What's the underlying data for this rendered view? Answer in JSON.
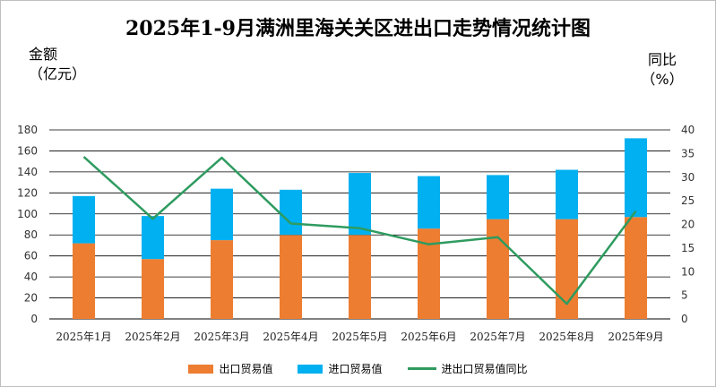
{
  "chart_data": {
    "type": "bar",
    "title": "2025年1-9月满洲里海关关区进出口走势情况统计图",
    "ylabel_left": [
      "金额",
      "（亿元）"
    ],
    "ylabel_right": [
      "同比",
      "（%）"
    ],
    "categories": [
      "2025年1月",
      "2025年2月",
      "2025年3月",
      "2025年4月",
      "2025年5月",
      "2025年6月",
      "2025年7月",
      "2025年8月",
      "2025年9月"
    ],
    "ylim": [
      0,
      180
    ],
    "yticks": [
      0,
      20,
      40,
      60,
      80,
      100,
      120,
      140,
      160,
      180
    ],
    "y2lim": [
      0,
      40
    ],
    "y2ticks": [
      0,
      5,
      10,
      15,
      20,
      25,
      30,
      35,
      40
    ],
    "grid": true,
    "legend_position": "bottom",
    "series": [
      {
        "name": "出口贸易值",
        "kind": "stacked-bar",
        "axis": "left",
        "color": "#ED7D31",
        "values": [
          72,
          57,
          75,
          80,
          80,
          86,
          95,
          95,
          97
        ]
      },
      {
        "name": "进口贸易值",
        "kind": "stacked-bar",
        "axis": "left",
        "color": "#00B0F0",
        "values": [
          45,
          41,
          49,
          43,
          59,
          50,
          42,
          47,
          75
        ]
      },
      {
        "name": "进出口贸易值同比",
        "kind": "line",
        "axis": "right",
        "color": "#2E9B5F",
        "values": [
          34.3,
          21.2,
          34.1,
          20.2,
          19.2,
          15.8,
          17.3,
          3.2,
          22.8
        ]
      }
    ]
  }
}
